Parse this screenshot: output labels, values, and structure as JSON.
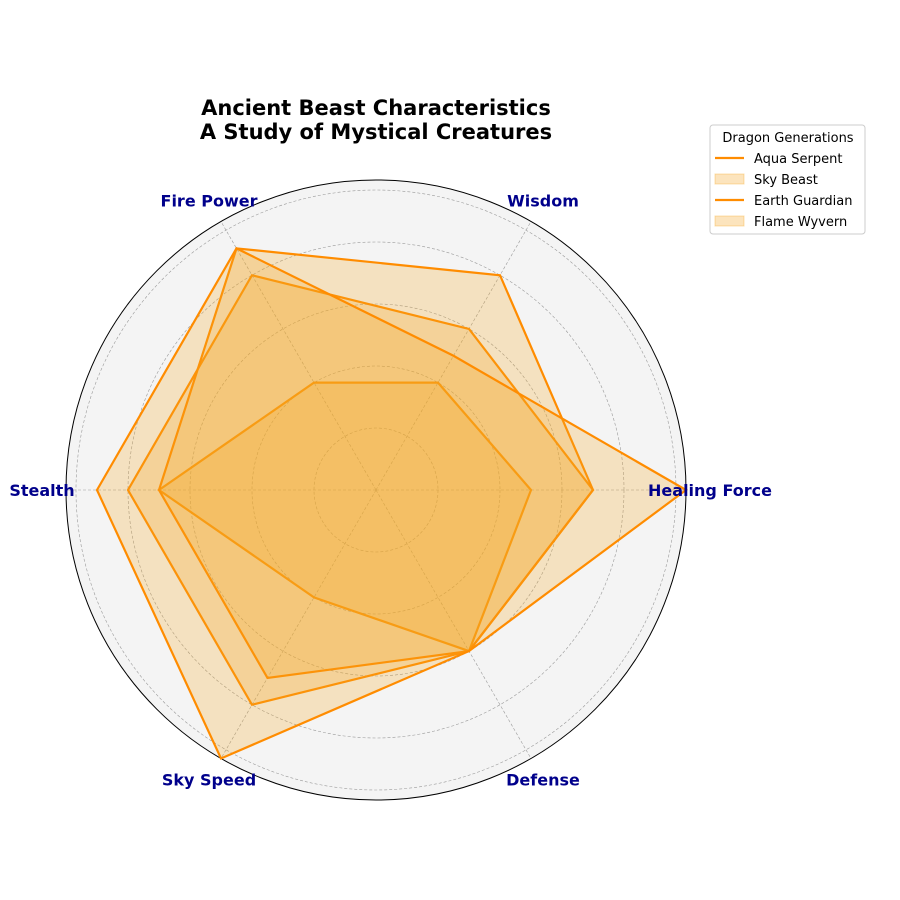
{
  "chart_data": {
    "type": "radar",
    "title_lines": [
      "Ancient Beast Characteristics",
      "A Study of Mystical Creatures"
    ],
    "categories": [
      "Healing Force",
      "Wisdom",
      "Fire Power",
      "Stealth",
      "Sky Speed",
      "Defense"
    ],
    "rmax": 100,
    "rticks": [
      20,
      40,
      60,
      80,
      100
    ],
    "grid": true,
    "legend": {
      "title": "Dragon Generations",
      "placement": "upper right outside plot"
    },
    "series": [
      {
        "name": "Aqua Serpent",
        "style": "line",
        "values": [
          50,
          40,
          40,
          70,
          40,
          60
        ]
      },
      {
        "name": "Sky Beast",
        "style": "fill",
        "values": [
          70,
          60,
          80,
          80,
          80,
          60
        ]
      },
      {
        "name": "Earth Guardian",
        "style": "line",
        "values": [
          70,
          80,
          90,
          70,
          70,
          60
        ]
      },
      {
        "name": "Flame Wyvern",
        "style": "fill",
        "values": [
          100,
          50,
          90,
          90,
          100,
          60
        ]
      }
    ],
    "colors": {
      "line": "#ff8c00",
      "fill": "#f5a623",
      "background": "#f4f4f4",
      "grid": "#9a9a9a",
      "axis_label": "#00008b"
    }
  }
}
